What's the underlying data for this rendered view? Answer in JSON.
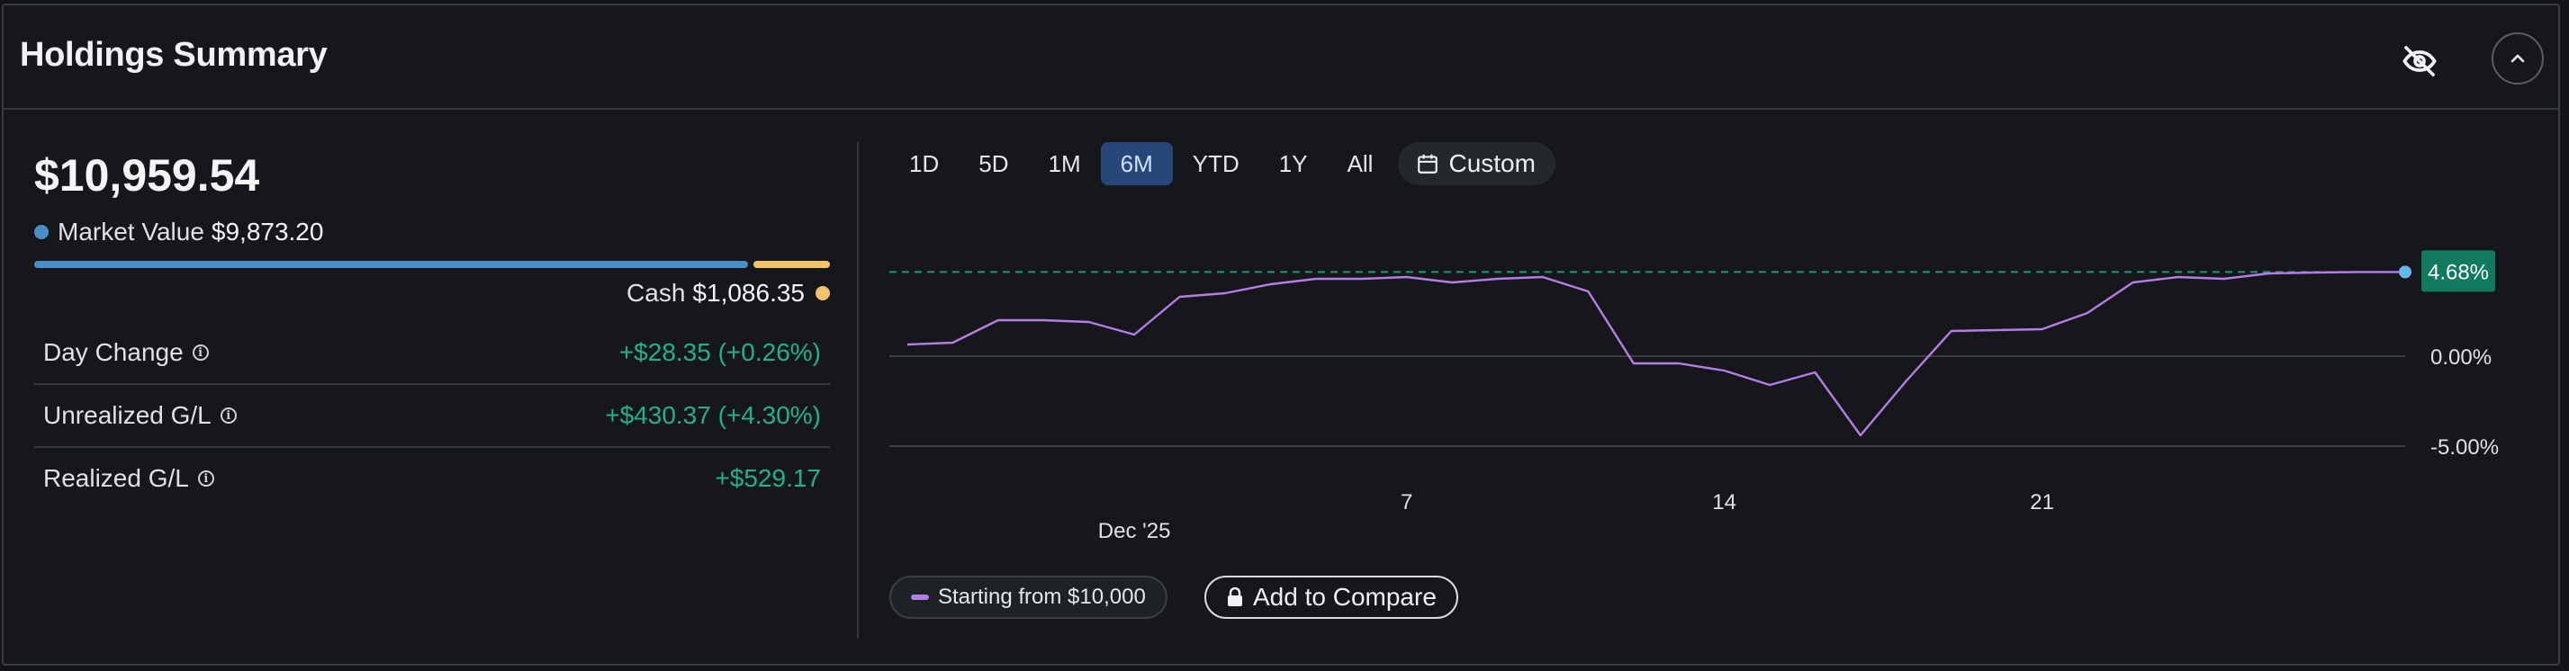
{
  "header": {
    "title": "Holdings Summary",
    "hide_icon": "eye-slash-icon",
    "collapse_icon": "chevron-up-icon"
  },
  "summary": {
    "total_value": "$10,959.54",
    "market_value_label": "Market Value",
    "market_value": "$9,873.20",
    "cash_label": "Cash",
    "cash_value": "$1,086.35",
    "market_value_fraction": 0.9,
    "colors": {
      "market_value": "#4a90c8",
      "cash": "#f2c36b",
      "positive": "#1fb482"
    },
    "rows": [
      {
        "label": "Day Change",
        "value": "+$28.35 (+0.26%)"
      },
      {
        "label": "Unrealized G/L",
        "value": "+$430.37 (+4.30%)"
      },
      {
        "label": "Realized G/L",
        "value": "+$529.17"
      }
    ]
  },
  "ranges": {
    "options": [
      "1D",
      "5D",
      "1M",
      "6M",
      "YTD",
      "1Y",
      "All"
    ],
    "selected": "6M",
    "custom_label": "Custom",
    "custom_icon": "calendar-icon"
  },
  "chart_data": {
    "type": "line",
    "x": [
      "Nov 26",
      "Nov 27",
      "Nov 28",
      "Nov 29",
      "Nov 30",
      "Dec 1",
      "Dec 2",
      "Dec 3",
      "Dec 4",
      "Dec 5",
      "Dec 6",
      "Dec 7",
      "Dec 8",
      "Dec 9",
      "Dec 10",
      "Dec 11",
      "Dec 12",
      "Dec 13",
      "Dec 14",
      "Dec 15",
      "Dec 16",
      "Dec 17",
      "Dec 18",
      "Dec 19",
      "Dec 20",
      "Dec 21",
      "Dec 22",
      "Dec 23",
      "Dec 24",
      "Dec 25",
      "Dec 26",
      "Dec 27",
      "Dec 28",
      "Dec 29"
    ],
    "series": [
      {
        "name": "Starting from $10,000",
        "color": "#b57ee6",
        "values": [
          0.65,
          0.75,
          2.0,
          2.0,
          1.9,
          1.2,
          3.3,
          3.5,
          4.0,
          4.3,
          4.3,
          4.4,
          4.1,
          4.3,
          4.4,
          3.6,
          -0.4,
          -0.4,
          -0.8,
          -1.6,
          -0.9,
          -4.4,
          -1.4,
          1.4,
          1.45,
          1.5,
          2.4,
          4.1,
          4.4,
          4.3,
          4.6,
          4.65,
          4.68,
          4.68
        ]
      }
    ],
    "y_ticks": [
      "0.00%",
      "-5.00%"
    ],
    "ylim": [
      -5.0,
      5.0
    ],
    "x_tick_labels": [
      {
        "label": "Dec '25",
        "date": "Dec 1"
      },
      {
        "label": "7",
        "date": "Dec 7"
      },
      {
        "label": "14",
        "date": "Dec 14"
      },
      {
        "label": "21",
        "date": "Dec 21"
      }
    ],
    "current_value_label": "4.68%",
    "reference_value": 4.68,
    "grid": true,
    "colors": {
      "badge": "#0f7a5e",
      "endpoint": "#5fb8f0",
      "reference_line": "#1b9a74"
    }
  },
  "legend": {
    "series_label": "Starting from $10,000",
    "compare_label": "Add to Compare",
    "compare_icon": "lock-icon"
  }
}
